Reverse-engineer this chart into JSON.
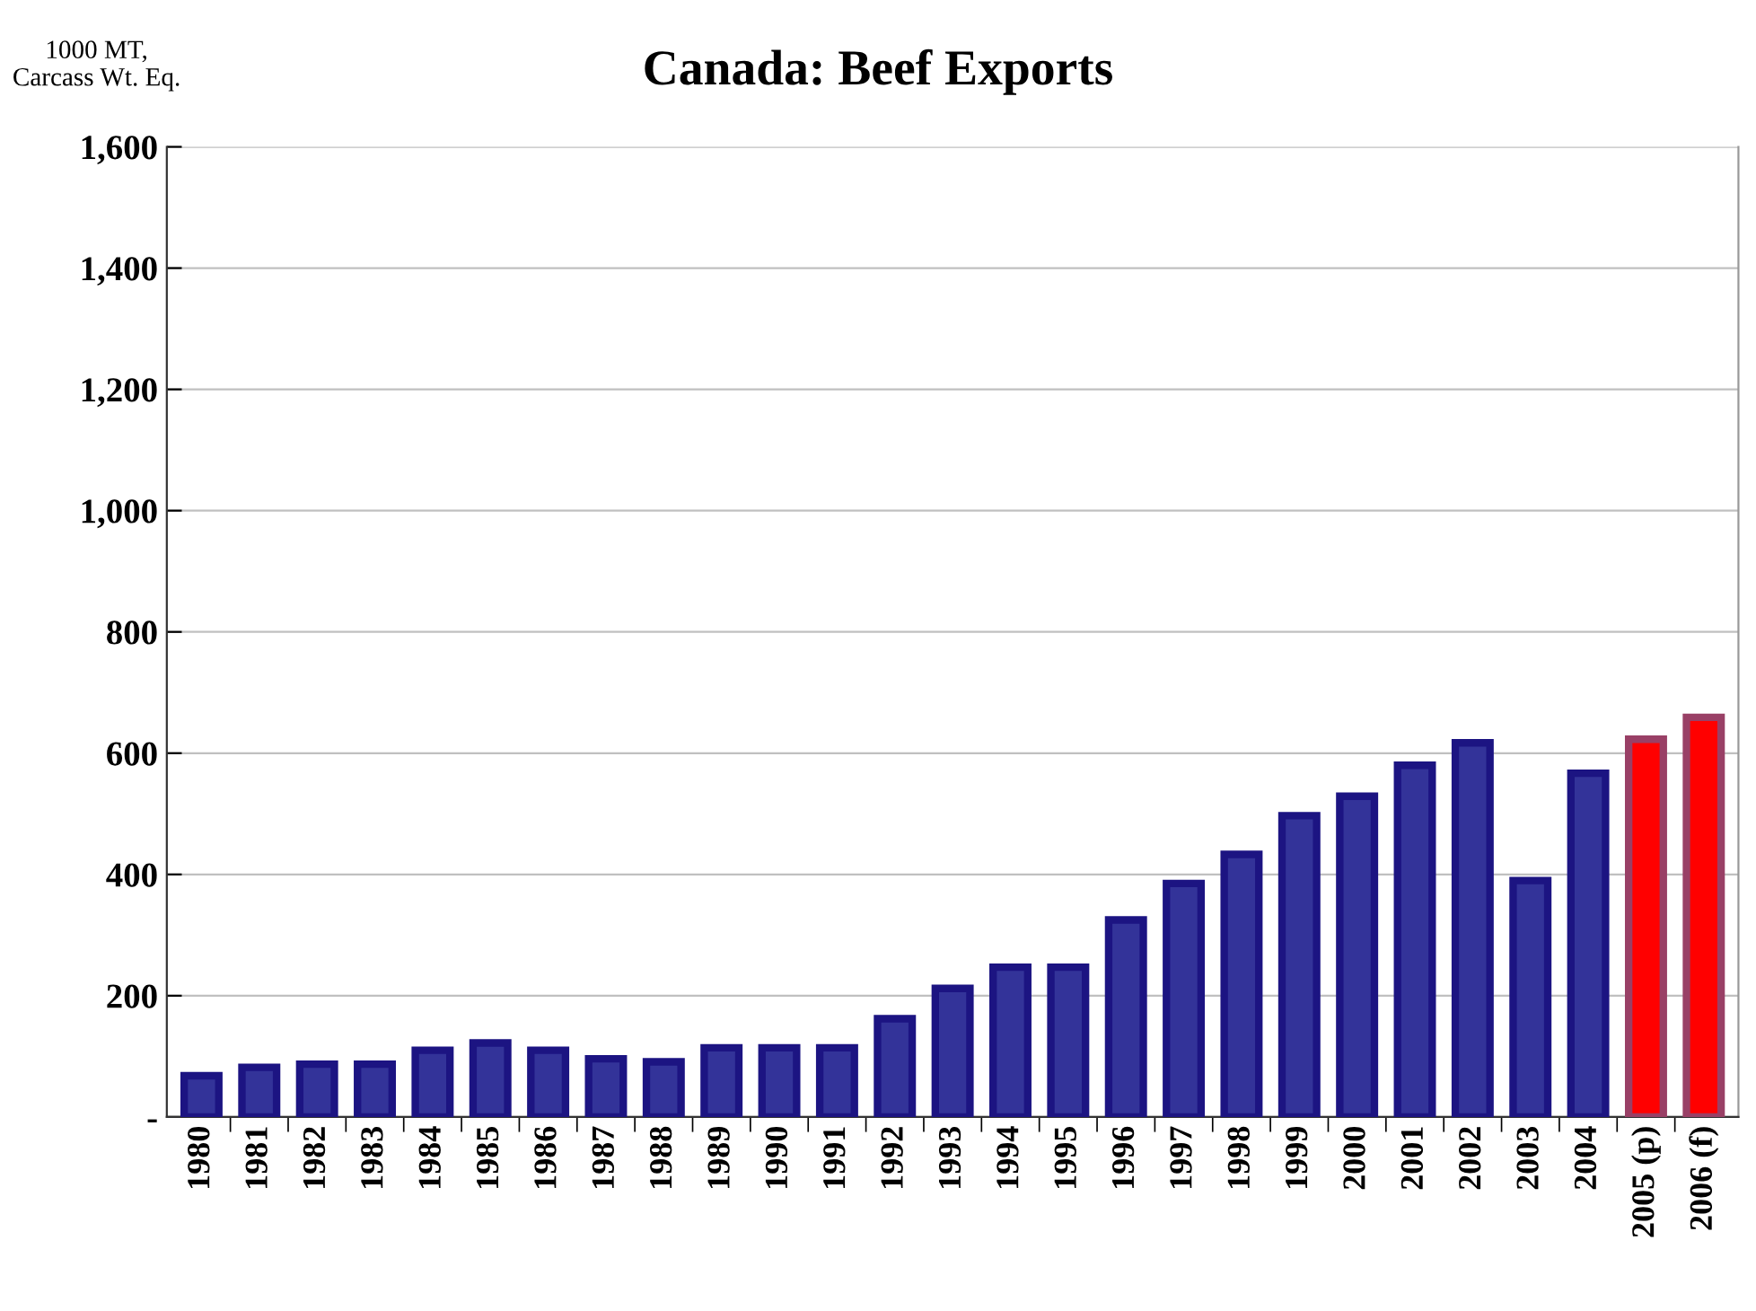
{
  "chart_data": {
    "type": "bar",
    "title": "Canada: Beef Exports",
    "ylabel": "1000 MT,\nCarcass Wt. Eq.",
    "categories": [
      "1980",
      "1981",
      "1982",
      "1983",
      "1984",
      "1985",
      "1986",
      "1987",
      "1988",
      "1989",
      "1990",
      "1991",
      "1992",
      "1993",
      "1994",
      "1995",
      "1996",
      "1997",
      "1998",
      "1999",
      "2000",
      "2001",
      "2002",
      "2003",
      "2004",
      "2005 (p)",
      "2006 (f)"
    ],
    "values": [
      68,
      82,
      87,
      87,
      110,
      122,
      110,
      96,
      91,
      114,
      114,
      114,
      162,
      212,
      247,
      247,
      325,
      385,
      433,
      497,
      529,
      580,
      617,
      390,
      567,
      623,
      659
    ],
    "colors": [
      "#333399",
      "#333399",
      "#333399",
      "#333399",
      "#333399",
      "#333399",
      "#333399",
      "#333399",
      "#333399",
      "#333399",
      "#333399",
      "#333399",
      "#333399",
      "#333399",
      "#333399",
      "#333399",
      "#333399",
      "#333399",
      "#333399",
      "#333399",
      "#333399",
      "#333399",
      "#333399",
      "#333399",
      "#333399",
      "#ff0000",
      "#ff0000"
    ],
    "ylim": [
      0,
      1600
    ],
    "yticks": [
      {
        "value": 0,
        "label": "-"
      },
      {
        "value": 200,
        "label": "200"
      },
      {
        "value": 400,
        "label": "400"
      },
      {
        "value": 600,
        "label": "600"
      },
      {
        "value": 800,
        "label": "800"
      },
      {
        "value": 1000,
        "label": "1,000"
      },
      {
        "value": 1200,
        "label": "1,200"
      },
      {
        "value": 1400,
        "label": "1,400"
      },
      {
        "value": 1600,
        "label": "1,600"
      }
    ],
    "grid": "y",
    "legend": false
  }
}
